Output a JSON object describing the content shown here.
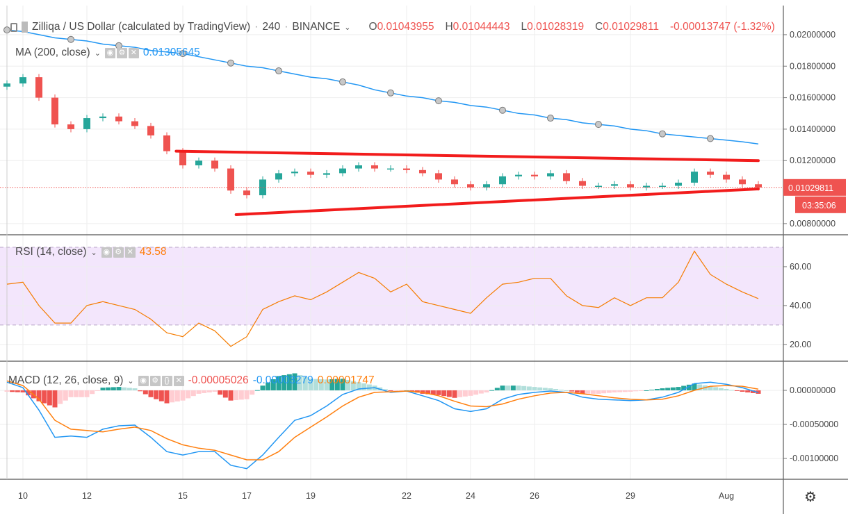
{
  "header": {
    "symbol": "Zilliqa / US Dollar (calculated by TradingView)",
    "interval": "240",
    "exchange": "BINANCE",
    "ohlc": {
      "o_label": "O",
      "o": "0.01043955",
      "h_label": "H",
      "h": "0.01044443",
      "l_label": "L",
      "l": "0.01028319",
      "c_label": "C",
      "c": "0.01029811",
      "change": "-0.00013747 (-1.32%)"
    }
  },
  "ma_legend": {
    "label": "MA (200, close)",
    "value": "0.01305645"
  },
  "rsi_legend": {
    "label": "RSI (14, close)",
    "value": "43.58"
  },
  "macd_legend": {
    "label": "MACD (12, 26, close, 9)",
    "hist": "-0.00005026",
    "macd": "-0.00003279",
    "signal": "0.00001747"
  },
  "price_axis": {
    "ticks": [
      "0.02000000",
      "0.01800000",
      "0.01600000",
      "0.01400000",
      "0.01200000",
      "0.00800000"
    ],
    "last_price": "0.01029811",
    "countdown": "03:35:06"
  },
  "rsi_axis": {
    "ticks": [
      "60.00",
      "40.00",
      "20.00"
    ]
  },
  "macd_axis": {
    "ticks": [
      "0.00000000",
      "-0.00050000",
      "-0.00100000"
    ]
  },
  "time_axis": [
    {
      "label": "10",
      "date": "Jul 10 00:00"
    },
    {
      "label": "12",
      "date": "Jul 12 00:00"
    },
    {
      "label": "15",
      "date": "Jul 15 00:00"
    },
    {
      "label": "17",
      "date": "Jul 17 00:00"
    },
    {
      "label": "19",
      "date": "Jul 19 00:00"
    },
    {
      "label": "22",
      "date": "Jul 22 00:00"
    },
    {
      "label": "24",
      "date": "Jul 24 00:00"
    },
    {
      "label": "26",
      "date": "Jul 26 00:00"
    },
    {
      "label": "29",
      "date": "Jul 29 00:00"
    },
    {
      "label": "Aug",
      "date": "Aug 01 00:00"
    }
  ],
  "colors": {
    "up": "#26a69a",
    "down": "#ef5350",
    "ma": "#2196f3",
    "rsi": "#f57c00",
    "rsi_band": "#f3e6fc",
    "macd": "#2196f3",
    "signal": "#ff7f0e",
    "hist_up_strong": "#26a69a",
    "hist_up_weak": "#b2dfdb",
    "hist_down_strong": "#ef5350",
    "hist_down_weak": "#ffcdd2",
    "trendline": "#f21c1c",
    "grid": "#eeeeee"
  },
  "icons": {
    "gear": "gear-icon",
    "eye": "eye-icon",
    "settings": "settings-icon",
    "close": "close-icon",
    "source": "braces-icon"
  },
  "chart_data": {
    "type": "candlestick",
    "price_ylim": [
      0.00729,
      0.02185
    ],
    "rsi_ylim": [
      11.4,
      75.7
    ],
    "rsi_band": [
      30,
      70
    ],
    "macd_ylim": [
      -0.001306,
      0.000408
    ],
    "times": [
      "Jul 09 12:00",
      "Jul 10 00:00",
      "Jul 10 12:00",
      "Jul 11 00:00",
      "Jul 11 12:00",
      "Jul 12 00:00",
      "Jul 12 12:00",
      "Jul 13 00:00",
      "Jul 13 12:00",
      "Jul 14 00:00",
      "Jul 14 12:00",
      "Jul 15 00:00",
      "Jul 15 12:00",
      "Jul 16 00:00",
      "Jul 16 12:00",
      "Jul 17 00:00",
      "Jul 17 12:00",
      "Jul 18 00:00",
      "Jul 18 12:00",
      "Jul 19 00:00",
      "Jul 19 12:00",
      "Jul 20 00:00",
      "Jul 20 12:00",
      "Jul 21 00:00",
      "Jul 21 12:00",
      "Jul 22 00:00",
      "Jul 22 12:00",
      "Jul 23 00:00",
      "Jul 23 12:00",
      "Jul 24 00:00",
      "Jul 24 12:00",
      "Jul 25 00:00",
      "Jul 25 12:00",
      "Jul 26 00:00",
      "Jul 26 12:00",
      "Jul 27 00:00",
      "Jul 27 12:00",
      "Jul 28 00:00",
      "Jul 28 12:00",
      "Jul 29 00:00",
      "Jul 29 12:00",
      "Jul 30 00:00",
      "Jul 30 12:00",
      "Jul 31 00:00",
      "Jul 31 12:00",
      "Aug 01 00:00",
      "Aug 01 12:00",
      "Aug 02 00:00"
    ],
    "close": [
      0.0169,
      0.0173,
      0.016,
      0.0143,
      0.014,
      0.0147,
      0.0148,
      0.0145,
      0.0142,
      0.0136,
      0.0126,
      0.0117,
      0.012,
      0.0115,
      0.0101,
      0.0098,
      0.0108,
      0.0112,
      0.0113,
      0.0111,
      0.0112,
      0.0115,
      0.0117,
      0.0115,
      0.0115,
      0.0114,
      0.0112,
      0.0108,
      0.0105,
      0.0103,
      0.0105,
      0.011,
      0.0111,
      0.011,
      0.0112,
      0.0107,
      0.0104,
      0.0104,
      0.0105,
      0.0103,
      0.0104,
      0.0104,
      0.0106,
      0.0113,
      0.0111,
      0.0108,
      0.0105,
      0.01029811
    ],
    "ma200": [
      0.0203,
      0.0202,
      0.02,
      0.0198,
      0.0197,
      0.0196,
      0.0194,
      0.0193,
      0.0192,
      0.019,
      0.0189,
      0.0188,
      0.0186,
      0.0184,
      0.0182,
      0.018,
      0.0179,
      0.0177,
      0.0175,
      0.0173,
      0.0172,
      0.017,
      0.0168,
      0.0165,
      0.0163,
      0.0161,
      0.016,
      0.0158,
      0.0157,
      0.0155,
      0.0154,
      0.0152,
      0.015,
      0.0149,
      0.0147,
      0.0146,
      0.0144,
      0.0143,
      0.0142,
      0.014,
      0.0139,
      0.0137,
      0.0136,
      0.0135,
      0.0134,
      0.0133,
      0.0132,
      0.01305645
    ],
    "rsi": [
      51,
      52,
      40,
      31,
      31,
      40,
      42,
      40,
      38,
      33,
      26,
      24,
      31,
      27,
      19,
      24,
      38,
      42,
      45,
      43,
      47,
      52,
      57,
      54,
      47,
      51,
      42,
      40,
      38,
      36,
      44,
      51,
      52,
      54,
      54,
      45,
      40,
      39,
      44,
      40,
      44,
      44,
      52,
      68,
      56,
      51,
      47,
      43.58
    ],
    "macd": [
      0.00012,
      4e-05,
      -0.00029,
      -0.00069,
      -0.00067,
      -0.00069,
      -0.00057,
      -0.00052,
      -0.00051,
      -0.00069,
      -0.0009,
      -0.00095,
      -0.0009,
      -0.0009,
      -0.0011,
      -0.00115,
      -0.00095,
      -0.00069,
      -0.00044,
      -0.00037,
      -0.00023,
      -6e-05,
      2e-05,
      4e-05,
      -3e-05,
      -1e-05,
      -8e-05,
      -0.00015,
      -0.00027,
      -0.00031,
      -0.00027,
      -0.00013,
      -6e-05,
      -3e-05,
      -1e-05,
      -3e-05,
      -0.0001,
      -0.00013,
      -0.00014,
      -0.00015,
      -0.00014,
      -0.0001,
      -3e-05,
      0.0001,
      0.00012,
      9e-05,
      4e-05,
      -3.279e-05
    ],
    "signal": [
      0.00014,
      7e-05,
      -0.00013,
      -0.00044,
      -0.00057,
      -0.00059,
      -0.00061,
      -0.00057,
      -0.00054,
      -0.00059,
      -0.00071,
      -0.0008,
      -0.00085,
      -0.00088,
      -0.00095,
      -0.00102,
      -0.00102,
      -0.0009,
      -0.00069,
      -0.00054,
      -0.00039,
      -0.00023,
      -0.0001,
      -3e-05,
      -2e-05,
      -1e-05,
      -3e-05,
      -8e-05,
      -0.00016,
      -0.00023,
      -0.00024,
      -0.0002,
      -0.00013,
      -8e-05,
      -4e-05,
      -3e-05,
      -5e-05,
      -8e-05,
      -0.00011,
      -0.00013,
      -0.00014,
      -0.00013,
      -8e-05,
      0,
      6e-05,
      7e-05,
      6e-05,
      1.747e-05
    ],
    "trendlines": [
      {
        "from": {
          "t": "Jul 14 19:00",
          "p": 0.0126
        },
        "to": {
          "t": "Aug 02 00:00",
          "p": 0.012
        }
      },
      {
        "from": {
          "t": "Jul 16 16:00",
          "p": 0.00857
        },
        "to": {
          "t": "Aug 02 00:00",
          "p": 0.0102
        }
      }
    ]
  }
}
